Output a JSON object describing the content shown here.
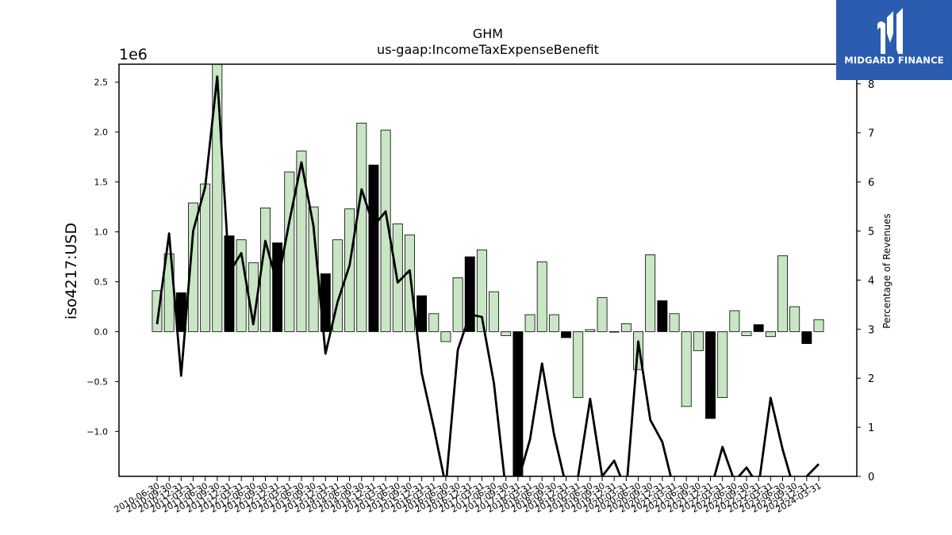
{
  "chart_data": {
    "type": "bar",
    "title": "GHM",
    "subtitle": "us-gaap:IncomeTaxExpenseBenefit",
    "ylabel": "iso4217:USD",
    "y2label": "Percentage of Revenues",
    "y_multiplier": "1e6",
    "ylim": [
      -1450000,
      2680000
    ],
    "y2lim": [
      0,
      8.4
    ],
    "yticks": [
      -1.0,
      -0.5,
      0.0,
      0.5,
      1.0,
      1.5,
      2.0,
      2.5
    ],
    "y2ticks": [
      0,
      1,
      2,
      3,
      4,
      5,
      6,
      7,
      8
    ],
    "grid": false,
    "categories": [
      "2010-06-30",
      "2010-09-30",
      "2010-12-31",
      "2011-03-31",
      "2011-06-30",
      "2011-09-30",
      "2011-12-31",
      "2012-03-31",
      "2012-06-30",
      "2012-09-30",
      "2012-12-31",
      "2013-03-31",
      "2013-06-30",
      "2013-09-30",
      "2013-12-31",
      "2014-03-31",
      "2014-06-30",
      "2014-09-30",
      "2014-12-31",
      "2015-03-31",
      "2015-06-30",
      "2015-09-30",
      "2015-12-31",
      "2016-03-31",
      "2016-06-30",
      "2016-09-30",
      "2016-12-31",
      "2017-03-31",
      "2017-06-30",
      "2017-09-30",
      "2017-12-31",
      "2018-03-31",
      "2018-06-30",
      "2018-09-30",
      "2018-12-31",
      "2019-03-31",
      "2019-06-30",
      "2019-09-30",
      "2019-12-31",
      "2020-03-31",
      "2020-06-30",
      "2020-09-30",
      "2020-12-31",
      "2021-03-31",
      "2021-06-30",
      "2021-09-30",
      "2021-12-31",
      "2022-03-31",
      "2022-06-30",
      "2022-09-30",
      "2022-12-31",
      "2023-03-31",
      "2023-06-30",
      "2023-09-30",
      "2023-12-31",
      "2024-03-31"
    ],
    "series": [
      {
        "kind": "bar",
        "values": [
          410000,
          780000,
          390000,
          1290000,
          1480000,
          2680000,
          960000,
          920000,
          690000,
          1240000,
          890000,
          1600000,
          1810000,
          1250000,
          580000,
          920000,
          1230000,
          2090000,
          1670000,
          2020000,
          1080000,
          970000,
          360000,
          180000,
          -100000,
          540000,
          750000,
          820000,
          400000,
          -40000,
          -1450000,
          170000,
          700000,
          170000,
          -60000,
          -660000,
          20000,
          340000,
          0,
          80000,
          -380000,
          770000,
          310000,
          180000,
          -750000,
          -190000,
          -870000,
          -660000,
          210000,
          -40000,
          70000,
          -50000,
          760000,
          250000,
          -120000,
          120000
        ],
        "highlight": [
          false,
          false,
          true,
          false,
          false,
          false,
          true,
          false,
          false,
          false,
          true,
          false,
          false,
          false,
          true,
          false,
          false,
          false,
          true,
          false,
          false,
          false,
          true,
          false,
          false,
          false,
          true,
          false,
          false,
          false,
          true,
          false,
          false,
          false,
          true,
          false,
          false,
          false,
          false,
          false,
          false,
          false,
          true,
          false,
          false,
          false,
          true,
          false,
          false,
          false,
          true,
          false,
          false,
          false,
          true,
          false
        ],
        "fill_color": "#c8e6c4",
        "highlight_color": "#000000"
      },
      {
        "kind": "line",
        "axis": "right",
        "values": [
          3.1,
          4.95,
          2.05,
          5.0,
          5.9,
          8.15,
          4.15,
          4.55,
          3.1,
          4.8,
          3.9,
          5.2,
          6.4,
          5.1,
          2.5,
          3.55,
          4.3,
          5.85,
          5.1,
          5.4,
          3.95,
          4.2,
          2.1,
          1.0,
          -0.2,
          2.58,
          3.3,
          3.25,
          1.9,
          -0.3,
          -0.1,
          0.75,
          2.3,
          0.85,
          -0.2,
          0.0,
          1.58,
          0.0,
          0.32,
          -0.3,
          2.75,
          1.15,
          0.7,
          -0.3,
          -0.3,
          -0.2,
          -0.3,
          0.6,
          -0.1,
          0.18,
          -0.2,
          1.6,
          0.55,
          -0.3,
          0.0,
          0.25
        ],
        "color": "#000000"
      }
    ]
  },
  "logo": {
    "text": "MIDGARD FINANCE",
    "bg_color": "#2b5cb0"
  }
}
